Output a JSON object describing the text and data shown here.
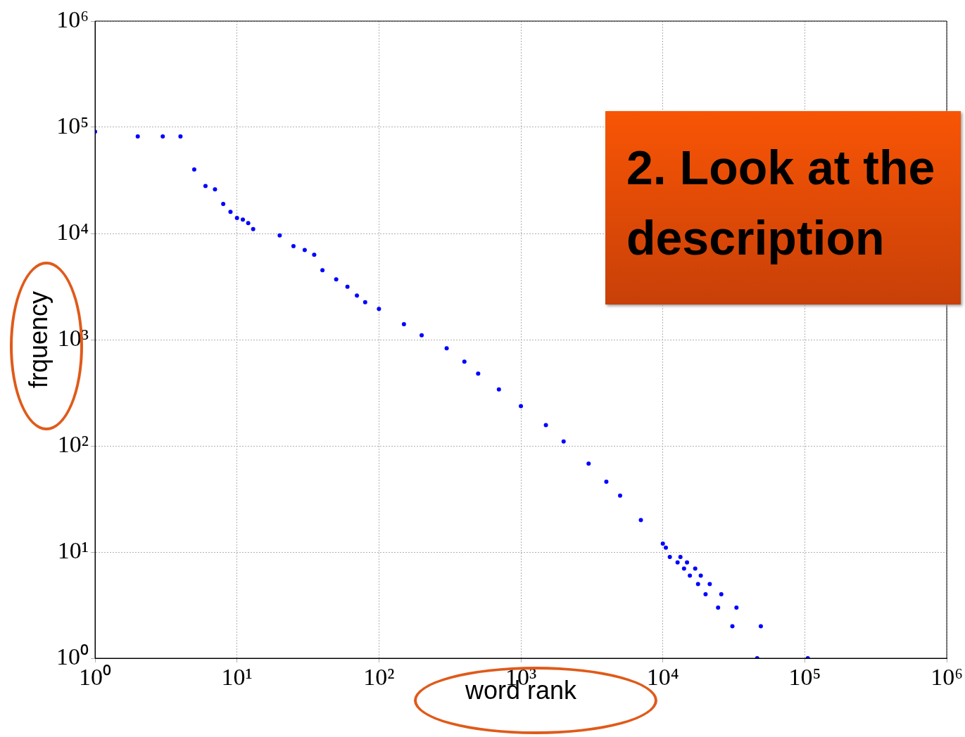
{
  "chart_data": {
    "type": "scatter",
    "xlabel": "word rank",
    "ylabel": "frquency",
    "log": "xy",
    "grid": true,
    "legend": false,
    "marker": "circle",
    "xlim": [
      1,
      1000000
    ],
    "ylim": [
      1,
      1000000
    ],
    "xticks": [
      {
        "value": 1,
        "label": "10⁰"
      },
      {
        "value": 10,
        "label": "10¹"
      },
      {
        "value": 100,
        "label": "10²"
      },
      {
        "value": 1000,
        "label": "10³"
      },
      {
        "value": 10000,
        "label": "10⁴"
      },
      {
        "value": 100000,
        "label": "10⁵"
      },
      {
        "value": 1000000,
        "label": "10⁶"
      }
    ],
    "yticks": [
      {
        "value": 1,
        "label": "10⁰"
      },
      {
        "value": 10,
        "label": "10¹"
      },
      {
        "value": 100,
        "label": "10²"
      },
      {
        "value": 1000,
        "label": "10³"
      },
      {
        "value": 10000,
        "label": "10⁴"
      },
      {
        "value": 100000,
        "label": "10⁵"
      },
      {
        "value": 1000000,
        "label": "10⁶"
      }
    ],
    "annotations": [
      "2. Look at the description"
    ],
    "series": [
      {
        "color": "#0000ff",
        "x": [
          1,
          2,
          3,
          4,
          5,
          6,
          7,
          8,
          9,
          10,
          11,
          12,
          13,
          20,
          25,
          30,
          35,
          40,
          50,
          60,
          70,
          80,
          100,
          150,
          200,
          300,
          400,
          500,
          700,
          1000,
          1500,
          2000,
          3000,
          4000,
          5000,
          7000,
          10000,
          10500,
          11200,
          13300,
          12700,
          14800,
          14100,
          16900,
          15500,
          18500,
          17700,
          21400,
          20000,
          25800,
          24500,
          33000,
          30900,
          49000,
          46200,
          105000
        ],
        "values": [
          91000,
          82000,
          82000,
          82000,
          40000,
          28000,
          26000,
          19000,
          16000,
          14000,
          13500,
          12500,
          11000,
          9600,
          7600,
          7000,
          6300,
          4500,
          3700,
          3150,
          2600,
          2250,
          1950,
          1400,
          1100,
          830,
          620,
          480,
          340,
          237,
          157,
          110,
          68,
          46,
          34,
          20,
          12,
          11,
          9,
          9,
          8,
          8,
          7,
          7,
          6,
          6,
          5,
          5,
          4,
          4,
          3,
          3,
          2,
          2,
          1,
          1
        ]
      }
    ]
  }
}
